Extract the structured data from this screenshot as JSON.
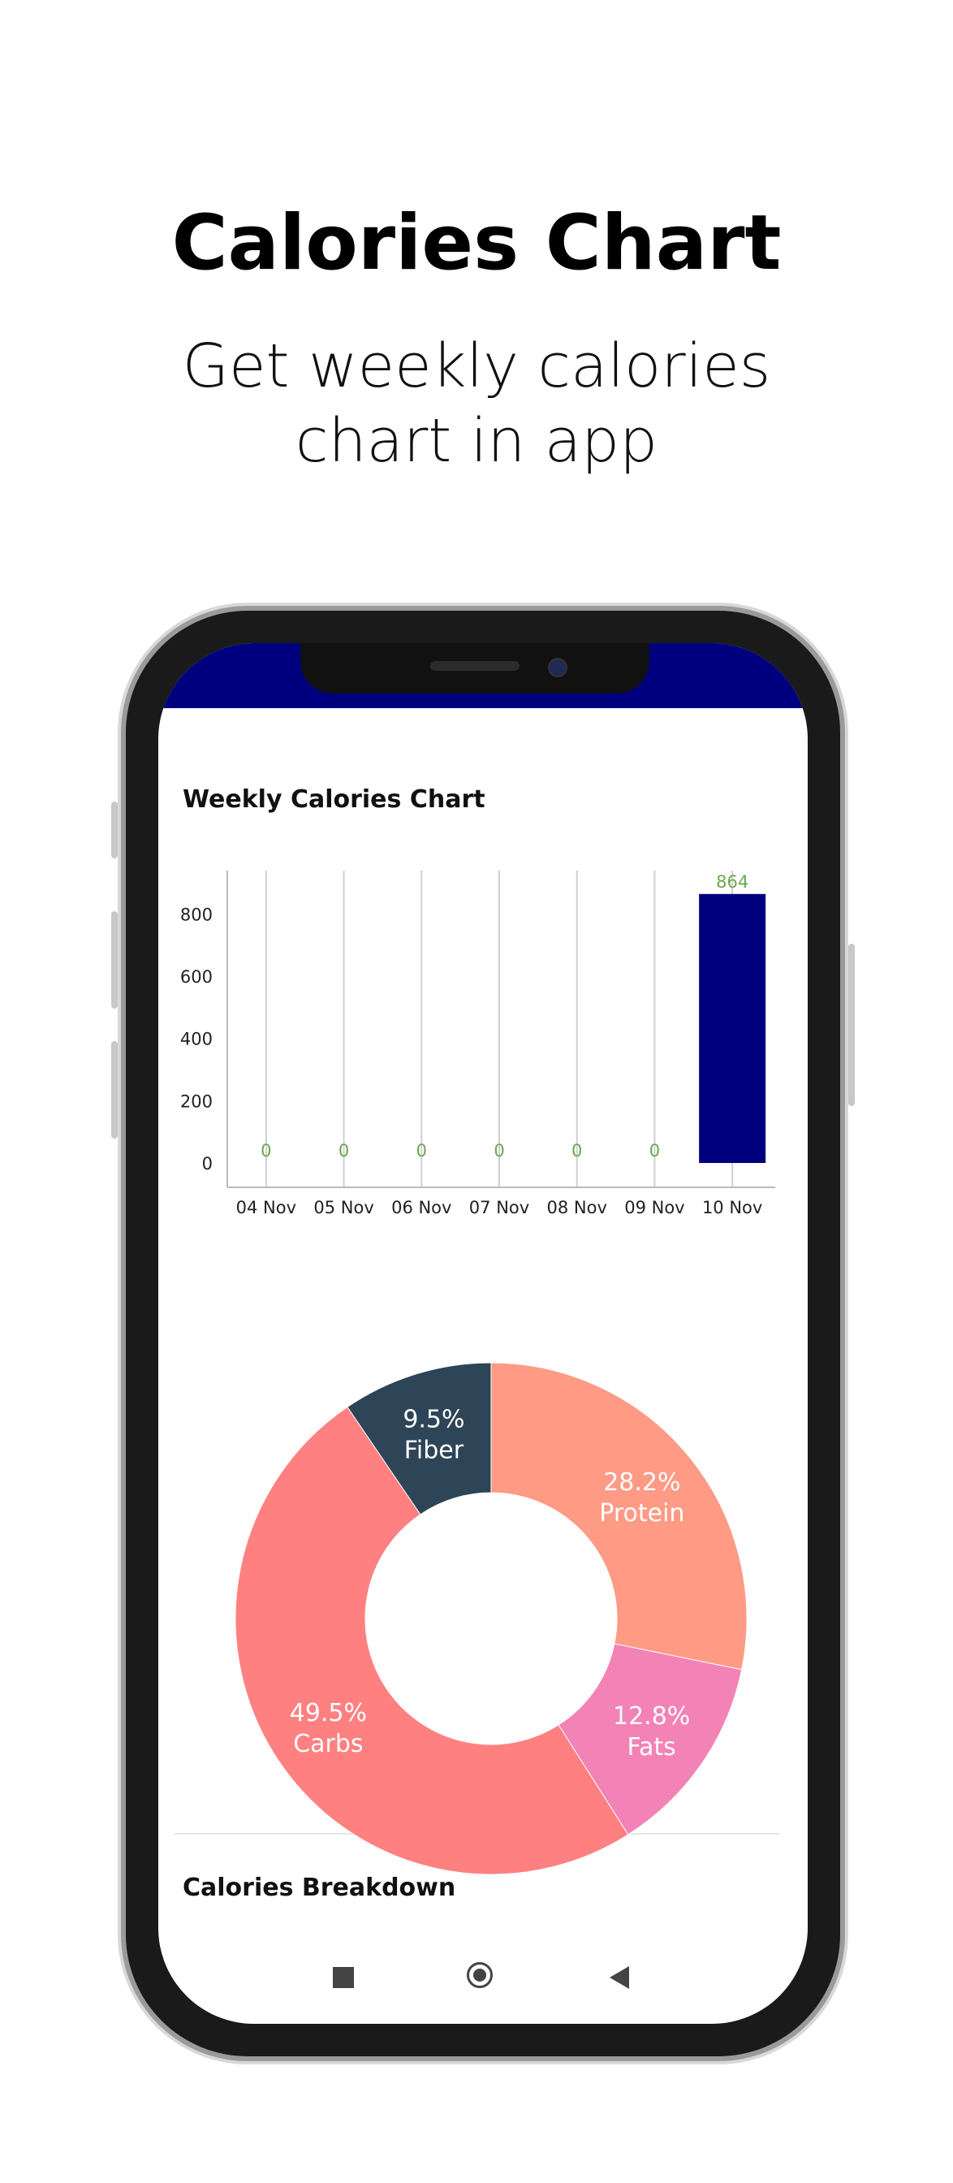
{
  "promo": {
    "title": "Calories Chart",
    "subtitle_line1": "Get weekly calories",
    "subtitle_line2": "chart in app"
  },
  "weekly_chart": {
    "title": "Weekly Calories Chart"
  },
  "breakdown": {
    "title": "Calories Breakdown"
  },
  "colors": {
    "status_bar": "#00007f",
    "bar": "#00007f",
    "bar_label": "#6aa84f",
    "protein": "#ff9a85",
    "fats": "#f382b6",
    "carbs": "#ff8080",
    "fiber": "#2e4457"
  },
  "nav": {
    "recent_icon": "square-icon",
    "home_icon": "circle-home-icon",
    "back_icon": "triangle-back-icon"
  },
  "chart_data": [
    {
      "type": "bar",
      "title": "Weekly Calories Chart",
      "categories": [
        "04 Nov",
        "05 Nov",
        "06 Nov",
        "07 Nov",
        "08 Nov",
        "09 Nov",
        "10 Nov"
      ],
      "values": [
        0,
        0,
        0,
        0,
        0,
        0,
        864
      ],
      "yticks": [
        0,
        200,
        400,
        600,
        800
      ],
      "ylim": [
        0,
        900
      ],
      "grid": "vertical"
    },
    {
      "type": "pie",
      "title": "Calories Breakdown",
      "donut": true,
      "slices": [
        {
          "name": "Protein",
          "value": 28.2,
          "label": "28.2%"
        },
        {
          "name": "Fats",
          "value": 12.8,
          "label": "12.8%"
        },
        {
          "name": "Carbs",
          "value": 49.5,
          "label": "49.5%"
        },
        {
          "name": "Fiber",
          "value": 9.5,
          "label": "9.5%"
        }
      ]
    }
  ]
}
